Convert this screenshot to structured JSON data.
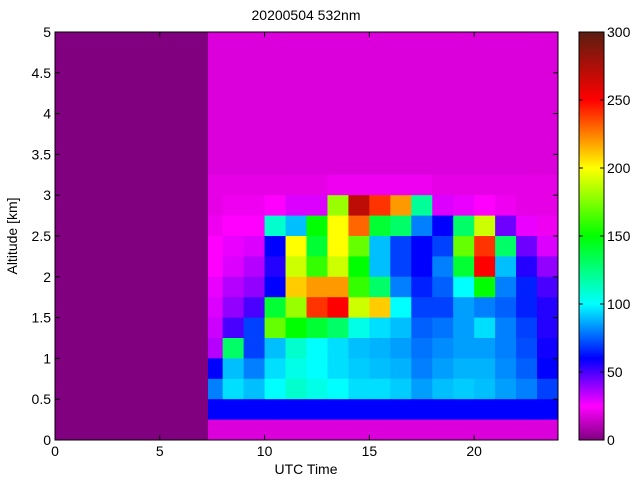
{
  "chart_data": {
    "type": "heatmap",
    "title": "20200504 532nm",
    "xlabel": "UTC Time",
    "ylabel": "Altitude [km]",
    "xlim": [
      0,
      24
    ],
    "ylim": [
      0,
      5
    ],
    "xticks": [
      "0",
      "5",
      "10",
      "15",
      "20"
    ],
    "xtick_values": [
      0,
      5,
      10,
      15,
      20
    ],
    "yticks": [
      "0",
      "0.5",
      "1",
      "1.5",
      "2",
      "2.5",
      "3",
      "3.5",
      "4",
      "4.5",
      "5"
    ],
    "ytick_values": [
      0,
      0.5,
      1,
      1.5,
      2,
      2.5,
      3,
      3.5,
      4,
      4.5,
      5
    ],
    "colorbar": {
      "range": [
        0,
        300
      ],
      "ticks": [
        "0",
        "50",
        "100",
        "150",
        "200",
        "250",
        "300"
      ],
      "tick_values": [
        0,
        50,
        100,
        150,
        200,
        250,
        300
      ],
      "colormap": [
        [
          0,
          "#800080"
        ],
        [
          25,
          "#ff00ff"
        ],
        [
          60,
          "#0000ff"
        ],
        [
          100,
          "#00ffff"
        ],
        [
          150,
          "#00ff00"
        ],
        [
          200,
          "#ffff00"
        ],
        [
          250,
          "#ff0000"
        ],
        [
          300,
          "#5a1e10"
        ]
      ]
    },
    "data_start_hour": 7.3,
    "x_bin_hours": 1,
    "y_bin_km": 0.25,
    "rows_top_to_bottom": [
      [
        0,
        0,
        0,
        0,
        0,
        0,
        0,
        18,
        18,
        18,
        18,
        18,
        18,
        18,
        18,
        18,
        18,
        18,
        18,
        18,
        18,
        18,
        18,
        18
      ],
      [
        0,
        0,
        0,
        0,
        0,
        0,
        0,
        18,
        18,
        18,
        18,
        18,
        18,
        18,
        18,
        18,
        18,
        18,
        18,
        18,
        18,
        18,
        18,
        18
      ],
      [
        0,
        0,
        0,
        0,
        0,
        0,
        0,
        18,
        18,
        18,
        18,
        18,
        18,
        18,
        18,
        18,
        18,
        18,
        18,
        18,
        18,
        18,
        18,
        18
      ],
      [
        0,
        0,
        0,
        0,
        0,
        0,
        0,
        18,
        18,
        18,
        18,
        18,
        18,
        18,
        18,
        18,
        18,
        18,
        18,
        18,
        18,
        18,
        18,
        18
      ],
      [
        0,
        0,
        0,
        0,
        0,
        0,
        0,
        18,
        18,
        18,
        18,
        18,
        18,
        18,
        18,
        18,
        18,
        18,
        18,
        18,
        18,
        18,
        18,
        18
      ],
      [
        0,
        0,
        0,
        0,
        0,
        0,
        0,
        18,
        18,
        18,
        18,
        18,
        18,
        18,
        18,
        18,
        18,
        18,
        18,
        18,
        18,
        18,
        18,
        18
      ],
      [
        0,
        0,
        0,
        0,
        0,
        0,
        0,
        18,
        18,
        18,
        18,
        18,
        18,
        18,
        18,
        18,
        18,
        18,
        18,
        18,
        18,
        18,
        18,
        18
      ],
      [
        0,
        0,
        0,
        0,
        0,
        0,
        0,
        20,
        20,
        20,
        20,
        20,
        20,
        22,
        22,
        22,
        22,
        22,
        20,
        20,
        20,
        20,
        20,
        20
      ],
      [
        0,
        0,
        0,
        0,
        0,
        0,
        0,
        20,
        22,
        22,
        25,
        30,
        30,
        180,
        270,
        240,
        220,
        120,
        30,
        28,
        25,
        22,
        20,
        20
      ],
      [
        0,
        0,
        0,
        0,
        0,
        0,
        0,
        22,
        25,
        25,
        110,
        90,
        150,
        200,
        230,
        140,
        130,
        80,
        60,
        130,
        190,
        45,
        28,
        22
      ],
      [
        0,
        0,
        0,
        0,
        0,
        0,
        0,
        25,
        28,
        30,
        60,
        200,
        140,
        200,
        170,
        90,
        70,
        60,
        70,
        170,
        240,
        130,
        45,
        30
      ],
      [
        0,
        0,
        0,
        0,
        0,
        0,
        0,
        25,
        30,
        35,
        55,
        190,
        160,
        190,
        150,
        90,
        70,
        60,
        80,
        140,
        250,
        90,
        55,
        40
      ],
      [
        0,
        0,
        0,
        0,
        0,
        0,
        0,
        28,
        35,
        40,
        60,
        210,
        220,
        220,
        160,
        130,
        80,
        65,
        75,
        100,
        150,
        80,
        65,
        50
      ],
      [
        0,
        0,
        0,
        0,
        0,
        0,
        0,
        30,
        40,
        50,
        140,
        180,
        240,
        250,
        190,
        210,
        100,
        70,
        70,
        85,
        80,
        75,
        65,
        55
      ],
      [
        0,
        0,
        0,
        0,
        0,
        0,
        0,
        32,
        50,
        70,
        170,
        150,
        140,
        130,
        105,
        95,
        90,
        75,
        78,
        85,
        95,
        80,
        70,
        55
      ],
      [
        0,
        0,
        0,
        0,
        0,
        0,
        0,
        35,
        130,
        70,
        90,
        110,
        100,
        95,
        90,
        88,
        85,
        78,
        82,
        85,
        85,
        80,
        72,
        58
      ],
      [
        0,
        0,
        0,
        0,
        0,
        0,
        0,
        60,
        90,
        80,
        95,
        105,
        100,
        95,
        92,
        90,
        88,
        80,
        85,
        88,
        88,
        82,
        75,
        60
      ],
      [
        0,
        0,
        0,
        0,
        0,
        0,
        0,
        80,
        95,
        90,
        100,
        110,
        105,
        100,
        95,
        95,
        92,
        85,
        90,
        92,
        90,
        85,
        80,
        70
      ],
      [
        0,
        0,
        0,
        0,
        0,
        0,
        0,
        60,
        60,
        60,
        60,
        60,
        60,
        60,
        60,
        60,
        60,
        60,
        60,
        60,
        60,
        60,
        60,
        60
      ],
      [
        0,
        0,
        0,
        0,
        0,
        0,
        0,
        18,
        18,
        18,
        18,
        18,
        18,
        18,
        18,
        18,
        18,
        18,
        18,
        18,
        18,
        18,
        18,
        18
      ]
    ]
  }
}
